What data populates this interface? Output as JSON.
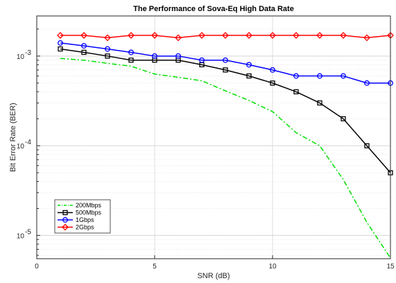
{
  "chart_data": {
    "type": "line",
    "title": "The Performance of Sova-Eq High Data Rate",
    "xlabel": "SNR (dB)",
    "ylabel": "Bit Error Rate (BER)",
    "xlim": [
      0,
      15
    ],
    "ylim": [
      5.5e-06,
      0.0028
    ],
    "yscale": "log",
    "grid": true,
    "legend_position": "bottom-left",
    "x_ticks": [
      {
        "value": 0,
        "label": "0"
      },
      {
        "value": 5,
        "label": "5"
      },
      {
        "value": 10,
        "label": "10"
      },
      {
        "value": 15,
        "label": "15"
      }
    ],
    "y_ticks": [
      {
        "value": 1e-05,
        "base": "10",
        "exp": "-5"
      },
      {
        "value": 0.0001,
        "base": "10",
        "exp": "-4"
      },
      {
        "value": 0.001,
        "base": "10",
        "exp": "-3"
      }
    ],
    "series": [
      {
        "name": "200Mbps",
        "color": "#00e000",
        "dash": "dash-dot",
        "marker": "none",
        "x": [
          1,
          2,
          3,
          4,
          5,
          6,
          7,
          8,
          9,
          10,
          11,
          12,
          13,
          14,
          15
        ],
        "y": [
          0.00094,
          0.0009,
          0.00083,
          0.00077,
          0.00063,
          0.00058,
          0.00053,
          0.00041,
          0.00032,
          0.00024,
          0.00014,
          0.0001,
          4.2e-05,
          1.4e-05,
          5.6e-06
        ]
      },
      {
        "name": "500Mbps",
        "color": "#000000",
        "dash": "solid",
        "marker": "square",
        "x": [
          1,
          2,
          3,
          4,
          5,
          6,
          7,
          8,
          9,
          10,
          11,
          12,
          13,
          14,
          15
        ],
        "y": [
          0.0012,
          0.0011,
          0.001,
          0.0009,
          0.0009,
          0.0009,
          0.0008,
          0.0007,
          0.0006,
          0.0005,
          0.0004,
          0.0003,
          0.0002,
          0.0001,
          5e-05
        ]
      },
      {
        "name": "1Gbps",
        "color": "#0000ff",
        "dash": "solid",
        "marker": "circle",
        "x": [
          1,
          2,
          3,
          4,
          5,
          6,
          7,
          8,
          9,
          10,
          11,
          12,
          13,
          14,
          15
        ],
        "y": [
          0.0014,
          0.0013,
          0.0012,
          0.0011,
          0.001,
          0.001,
          0.0009,
          0.0009,
          0.0008,
          0.0007,
          0.0006,
          0.0006,
          0.0006,
          0.0005,
          0.0005
        ]
      },
      {
        "name": "2Gbps",
        "color": "#ff0000",
        "dash": "solid",
        "marker": "diamond",
        "x": [
          1,
          2,
          3,
          4,
          5,
          6,
          7,
          8,
          9,
          10,
          11,
          12,
          13,
          14,
          15
        ],
        "y": [
          0.0017,
          0.0017,
          0.0016,
          0.0017,
          0.0017,
          0.0016,
          0.0017,
          0.0017,
          0.0017,
          0.0017,
          0.0017,
          0.0017,
          0.0017,
          0.0016,
          0.0017
        ]
      }
    ]
  }
}
